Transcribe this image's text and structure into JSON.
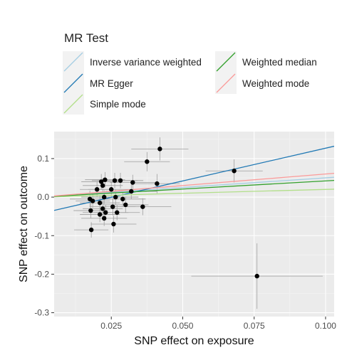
{
  "chart_data": {
    "type": "scatter",
    "xlabel": "SNP effect on exposure",
    "ylabel": "SNP effect on outcome",
    "xlim": [
      0.005,
      0.103
    ],
    "ylim": [
      -0.31,
      0.17
    ],
    "x_ticks": [
      0.025,
      0.05,
      0.075,
      0.1
    ],
    "x_tick_labels": [
      "0.025",
      "0.050",
      "0.075",
      "0.100"
    ],
    "y_ticks": [
      -0.3,
      -0.2,
      -0.1,
      0.0,
      0.1
    ],
    "y_tick_labels": [
      "-0.3",
      "-0.2",
      "-0.1",
      "0.0",
      "0.1"
    ],
    "grid": true,
    "legend": {
      "title": "MR Test",
      "placement": "top",
      "entries": [
        {
          "name": "Inverse variance weighted",
          "color": "#a6cee3"
        },
        {
          "name": "MR Egger",
          "color": "#1f78b4"
        },
        {
          "name": "Simple mode",
          "color": "#b2df8a"
        },
        {
          "name": "Weighted median",
          "color": "#33a02c"
        },
        {
          "name": "Weighted mode",
          "color": "#fb9a99"
        }
      ]
    },
    "lines": [
      {
        "name": "Inverse variance weighted",
        "color": "#a6cee3",
        "intercept": 0.0,
        "slope": 0.5
      },
      {
        "name": "MR Egger",
        "color": "#1f78b4",
        "intercept": -0.043,
        "slope": 1.7
      },
      {
        "name": "Simple mode",
        "color": "#b2df8a",
        "intercept": 0.0,
        "slope": 0.2
      },
      {
        "name": "Weighted median",
        "color": "#33a02c",
        "intercept": 0.0,
        "slope": 0.42
      },
      {
        "name": "Weighted mode",
        "color": "#fb9a99",
        "intercept": 0.0,
        "slope": 0.6
      }
    ],
    "points": [
      {
        "x": 0.0175,
        "y": -0.005,
        "xerr": 0.007,
        "yerr": 0.022
      },
      {
        "x": 0.0178,
        "y": -0.035,
        "xerr": 0.006,
        "yerr": 0.02
      },
      {
        "x": 0.018,
        "y": -0.085,
        "xerr": 0.006,
        "yerr": 0.02
      },
      {
        "x": 0.0185,
        "y": -0.01,
        "xerr": 0.006,
        "yerr": 0.018
      },
      {
        "x": 0.02,
        "y": 0.02,
        "xerr": 0.006,
        "yerr": 0.02
      },
      {
        "x": 0.021,
        "y": -0.015,
        "xerr": 0.007,
        "yerr": 0.02
      },
      {
        "x": 0.021,
        "y": -0.045,
        "xerr": 0.007,
        "yerr": 0.02
      },
      {
        "x": 0.0215,
        "y": 0.04,
        "xerr": 0.007,
        "yerr": 0.02
      },
      {
        "x": 0.022,
        "y": -0.03,
        "xerr": 0.007,
        "yerr": 0.02
      },
      {
        "x": 0.022,
        "y": 0.03,
        "xerr": 0.007,
        "yerr": 0.018
      },
      {
        "x": 0.0225,
        "y": -0.055,
        "xerr": 0.008,
        "yerr": 0.02
      },
      {
        "x": 0.0225,
        "y": 0.0,
        "xerr": 0.008,
        "yerr": 0.018
      },
      {
        "x": 0.0228,
        "y": 0.045,
        "xerr": 0.007,
        "yerr": 0.02
      },
      {
        "x": 0.023,
        "y": -0.04,
        "xerr": 0.008,
        "yerr": 0.02
      },
      {
        "x": 0.025,
        "y": 0.02,
        "xerr": 0.008,
        "yerr": 0.02
      },
      {
        "x": 0.0255,
        "y": -0.025,
        "xerr": 0.008,
        "yerr": 0.022
      },
      {
        "x": 0.0258,
        "y": -0.07,
        "xerr": 0.008,
        "yerr": 0.022
      },
      {
        "x": 0.0262,
        "y": 0.043,
        "xerr": 0.008,
        "yerr": 0.02
      },
      {
        "x": 0.0265,
        "y": 0.0,
        "xerr": 0.008,
        "yerr": 0.02
      },
      {
        "x": 0.027,
        "y": -0.04,
        "xerr": 0.008,
        "yerr": 0.02
      },
      {
        "x": 0.0282,
        "y": 0.043,
        "xerr": 0.008,
        "yerr": 0.02
      },
      {
        "x": 0.029,
        "y": -0.005,
        "xerr": 0.008,
        "yerr": 0.018
      },
      {
        "x": 0.03,
        "y": -0.02,
        "xerr": 0.008,
        "yerr": 0.02
      },
      {
        "x": 0.032,
        "y": 0.015,
        "xerr": 0.009,
        "yerr": 0.02
      },
      {
        "x": 0.0325,
        "y": 0.038,
        "xerr": 0.008,
        "yerr": 0.02
      },
      {
        "x": 0.036,
        "y": -0.025,
        "xerr": 0.01,
        "yerr": 0.022
      },
      {
        "x": 0.0375,
        "y": 0.092,
        "xerr": 0.008,
        "yerr": 0.025
      },
      {
        "x": 0.041,
        "y": 0.035,
        "xerr": 0.008,
        "yerr": 0.025
      },
      {
        "x": 0.042,
        "y": 0.125,
        "xerr": 0.01,
        "yerr": 0.03
      },
      {
        "x": 0.068,
        "y": 0.068,
        "xerr": 0.01,
        "yerr": 0.03
      },
      {
        "x": 0.076,
        "y": -0.205,
        "xerr": 0.023,
        "yerr": 0.085
      }
    ]
  }
}
